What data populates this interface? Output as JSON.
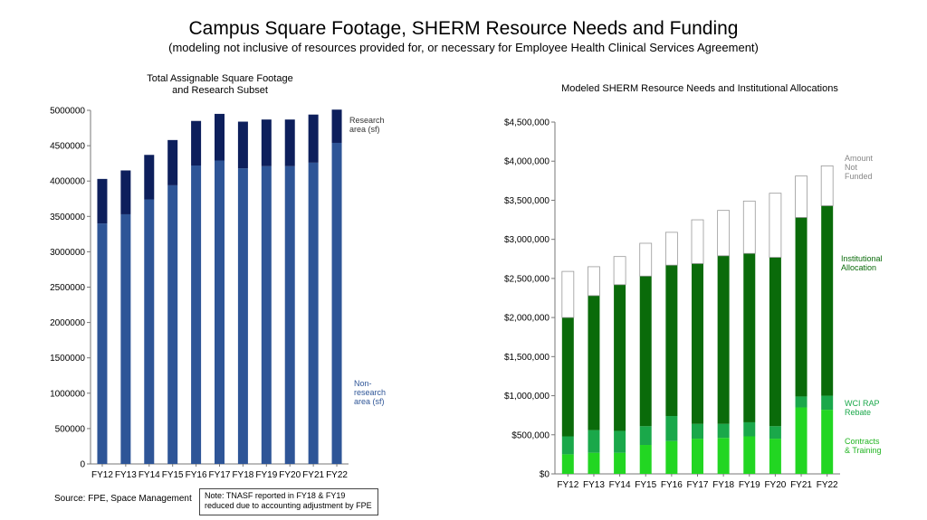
{
  "header": {
    "title": "Campus Square Footage, SHERM Resource Needs and Funding",
    "subtitle": "(modeling not inclusive of resources provided for, or necessary for Employee Health Clinical Services Agreement)"
  },
  "footer": {
    "source": "Source: FPE, Space Management",
    "note": "Note: TNASF reported in FY18 & FY19 reduced due to accounting adjustment by FPE"
  },
  "chart_data": [
    {
      "type": "bar",
      "stacked": true,
      "title": "Total Assignable Square Footage\nand Research Subset",
      "categories": [
        "FY12",
        "FY13",
        "FY14",
        "FY15",
        "FY16",
        "FY17",
        "FY18",
        "FY19",
        "FY20",
        "FY21",
        "FY22"
      ],
      "series": [
        {
          "name": "Non-\nresearch\narea (sf)",
          "color": "#2e5597",
          "values": [
            3400000,
            3530000,
            3740000,
            3940000,
            4220000,
            4290000,
            4180000,
            4210000,
            4210000,
            4260000,
            4540000
          ]
        },
        {
          "name": "Research\narea (sf)",
          "color": "#0d1f5c",
          "values": [
            630000,
            620000,
            630000,
            640000,
            630000,
            660000,
            660000,
            660000,
            660000,
            680000,
            470000
          ]
        }
      ],
      "ylim": [
        0,
        5000000
      ],
      "yticks": [
        "0",
        "500000",
        "1000000",
        "1500000",
        "2000000",
        "2500000",
        "3000000",
        "3500000",
        "4000000",
        "4500000",
        "5000000"
      ],
      "legend_placement": "right"
    },
    {
      "type": "bar",
      "stacked": true,
      "title": "Modeled SHERM Resource Needs and Institutional Allocations",
      "categories": [
        "FY12",
        "FY13",
        "FY14",
        "FY15",
        "FY16",
        "FY17",
        "FY18",
        "FY19",
        "FY20",
        "FY21",
        "FY22"
      ],
      "series": [
        {
          "name": "Contracts\n& Training",
          "color": "#22d622",
          "values": [
            250000,
            270000,
            270000,
            370000,
            420000,
            450000,
            460000,
            480000,
            450000,
            850000,
            820000
          ]
        },
        {
          "name": "WCI RAP\nRebate",
          "color": "#1aa84a",
          "values": [
            230000,
            290000,
            280000,
            240000,
            320000,
            190000,
            180000,
            180000,
            160000,
            140000,
            180000
          ]
        },
        {
          "name": "Institutional\nAllocation",
          "color": "#0a6b0a",
          "values": [
            1520000,
            1720000,
            1870000,
            1920000,
            1930000,
            2050000,
            2150000,
            2160000,
            2160000,
            2290000,
            2430000
          ]
        },
        {
          "name": "Amount\nNot\nFunded",
          "color": "#ffffff",
          "values": [
            590000,
            370000,
            360000,
            420000,
            420000,
            560000,
            580000,
            670000,
            820000,
            530000,
            510000
          ]
        }
      ],
      "ylim": [
        0,
        4500000
      ],
      "yticks": [
        "$0",
        "$500,000",
        "$1,000,000",
        "$1,500,000",
        "$2,000,000",
        "$2,500,000",
        "$3,000,000",
        "$3,500,000",
        "$4,000,000",
        "$4,500,000"
      ],
      "legend_placement": "right"
    }
  ]
}
